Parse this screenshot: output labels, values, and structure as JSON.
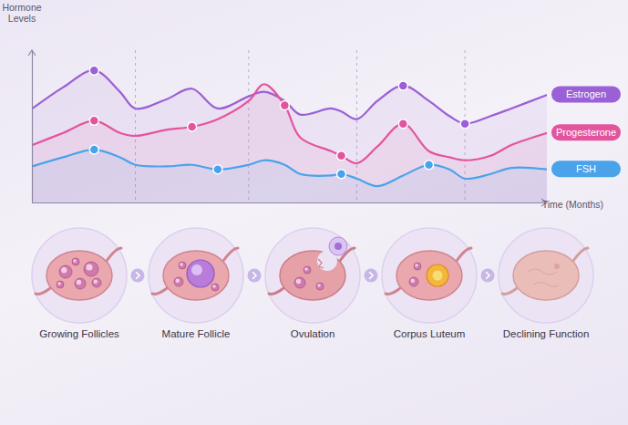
{
  "chart_data": {
    "type": "line",
    "x_label": "Time (Months)",
    "y_label": "Hormone Levels",
    "x": [
      0,
      6,
      12,
      17,
      20,
      26,
      31,
      36,
      42,
      45,
      49,
      52,
      58,
      60,
      63,
      67,
      72,
      77,
      81,
      84,
      89,
      93,
      100
    ],
    "xlim": [
      0,
      100
    ],
    "ylim": [
      0,
      100
    ],
    "xticks": [
      20,
      42,
      63,
      84
    ],
    "yticks": [],
    "grid": true,
    "tick_labels": false,
    "legend": "right",
    "series": [
      {
        "name": "Estrogen",
        "color": "#9b5fd6",
        "marker": "circle",
        "marked_x": [
          12,
          72,
          84
        ],
        "values": [
          62,
          76,
          87,
          73,
          62,
          68,
          75,
          62,
          70,
          73,
          67,
          58,
          62,
          60,
          55,
          67,
          77,
          67,
          57,
          52,
          57,
          62,
          71
        ]
      },
      {
        "name": "Progesterone",
        "color": "#e3549e",
        "marker": "circle",
        "marked_x": [
          12,
          31,
          49,
          60,
          72
        ],
        "values": [
          38,
          46,
          54,
          46,
          44,
          48,
          50,
          55,
          67,
          78,
          64,
          43,
          34,
          31,
          26,
          37,
          52,
          34,
          30,
          28,
          31,
          38,
          46
        ]
      },
      {
        "name": "FSH",
        "color": "#4aa3ea",
        "marker": "circle",
        "marked_x": [
          12,
          36,
          60,
          77
        ],
        "values": [
          24,
          30,
          35,
          30,
          25,
          24,
          25,
          22,
          25,
          28,
          25,
          19,
          18,
          19,
          16,
          11,
          18,
          25,
          22,
          16,
          19,
          23,
          22
        ]
      }
    ]
  },
  "diagram": {
    "stages": [
      {
        "label": "Growing Follicles"
      },
      {
        "label": "Mature Follicle"
      },
      {
        "label": "Ovulation"
      },
      {
        "label": "Corpus Luteum"
      },
      {
        "label": "Declining Function"
      }
    ]
  }
}
